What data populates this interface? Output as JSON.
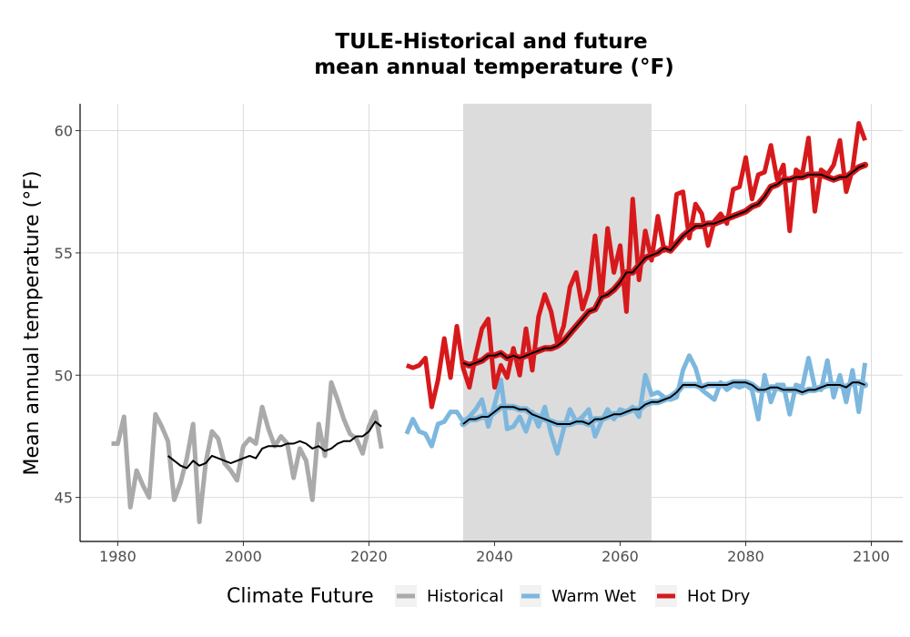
{
  "chart_data": {
    "type": "line",
    "title": "TULE-Historical and future",
    "subtitle": "mean annual temperature (°F)",
    "xlabel": "",
    "ylabel": "Mean annual temperature (°F)",
    "xlim": [
      1974,
      2105
    ],
    "ylim": [
      43.2,
      61.1
    ],
    "xticks": [
      1980,
      2000,
      2020,
      2040,
      2060,
      2080,
      2100
    ],
    "yticks": [
      45,
      50,
      55,
      60
    ],
    "grid": true,
    "shaded_period": [
      2035,
      2065
    ],
    "legend": {
      "title": "Climate Future",
      "position": "bottom",
      "entries": [
        "Historical",
        "Warm Wet",
        "Hot Dry"
      ]
    },
    "colors": {
      "Historical": "#aaaaaa",
      "Warm Wet": "#7db7de",
      "Hot Dry": "#d7191c",
      "smooth": "#000000",
      "shade": "#dcdcdc"
    },
    "series": [
      {
        "name": "Historical",
        "x": [
          1979,
          1980,
          1981,
          1982,
          1983,
          1984,
          1985,
          1986,
          1987,
          1988,
          1989,
          1990,
          1991,
          1992,
          1993,
          1994,
          1995,
          1996,
          1997,
          1998,
          1999,
          2000,
          2001,
          2002,
          2003,
          2004,
          2005,
          2006,
          2007,
          2008,
          2009,
          2010,
          2011,
          2012,
          2013,
          2014,
          2015,
          2016,
          2017,
          2018,
          2019,
          2020,
          2021,
          2022
        ],
        "values": [
          47.2,
          47.2,
          48.3,
          44.6,
          46.1,
          45.5,
          45.0,
          48.4,
          47.9,
          47.3,
          44.9,
          45.6,
          46.6,
          48.0,
          44.0,
          46.4,
          47.7,
          47.4,
          46.4,
          46.1,
          45.7,
          47.1,
          47.4,
          47.2,
          48.7,
          47.8,
          47.1,
          47.5,
          47.2,
          45.8,
          47.0,
          46.5,
          44.9,
          48.0,
          46.7,
          49.7,
          49.0,
          48.2,
          47.6,
          47.4,
          46.8,
          47.9,
          48.5,
          47.0
        ]
      },
      {
        "name": "Historical smoothed",
        "x": [
          1988,
          1989,
          1990,
          1991,
          1992,
          1993,
          1994,
          1995,
          1996,
          1997,
          1998,
          1999,
          2000,
          2001,
          2002,
          2003,
          2004,
          2005,
          2006,
          2007,
          2008,
          2009,
          2010,
          2011,
          2012,
          2013,
          2014,
          2015,
          2016,
          2017,
          2018,
          2019,
          2020,
          2021,
          2022
        ],
        "values": [
          46.7,
          46.5,
          46.3,
          46.2,
          46.5,
          46.3,
          46.4,
          46.7,
          46.6,
          46.5,
          46.4,
          46.5,
          46.6,
          46.7,
          46.6,
          47.0,
          47.1,
          47.1,
          47.1,
          47.2,
          47.2,
          47.3,
          47.2,
          47.0,
          47.1,
          46.9,
          47.0,
          47.2,
          47.3,
          47.3,
          47.5,
          47.5,
          47.7,
          48.1,
          47.9
        ]
      },
      {
        "name": "Warm Wet",
        "x": [
          2026,
          2027,
          2028,
          2029,
          2030,
          2031,
          2032,
          2033,
          2034,
          2035,
          2036,
          2037,
          2038,
          2039,
          2040,
          2041,
          2042,
          2043,
          2044,
          2045,
          2046,
          2047,
          2048,
          2049,
          2050,
          2051,
          2052,
          2053,
          2054,
          2055,
          2056,
          2057,
          2058,
          2059,
          2060,
          2061,
          2062,
          2063,
          2064,
          2065,
          2066,
          2067,
          2068,
          2069,
          2070,
          2071,
          2072,
          2073,
          2074,
          2075,
          2076,
          2077,
          2078,
          2079,
          2080,
          2081,
          2082,
          2083,
          2084,
          2085,
          2086,
          2087,
          2088,
          2089,
          2090,
          2091,
          2092,
          2093,
          2094,
          2095,
          2096,
          2097,
          2098,
          2099
        ],
        "values": [
          47.6,
          48.2,
          47.7,
          47.6,
          47.1,
          48.0,
          48.1,
          48.5,
          48.5,
          48.1,
          48.3,
          48.6,
          49.0,
          47.9,
          48.8,
          49.8,
          47.8,
          47.9,
          48.3,
          47.7,
          48.5,
          47.9,
          48.7,
          47.6,
          46.8,
          47.8,
          48.6,
          48.1,
          48.3,
          48.6,
          47.5,
          48.1,
          48.6,
          48.2,
          48.6,
          48.5,
          48.7,
          48.3,
          50.0,
          49.2,
          49.3,
          49.1,
          49.0,
          49.1,
          50.2,
          50.8,
          50.3,
          49.4,
          49.2,
          49.0,
          49.7,
          49.4,
          49.6,
          49.5,
          49.6,
          49.4,
          48.2,
          50.0,
          48.9,
          49.6,
          49.6,
          48.4,
          49.6,
          49.5,
          50.7,
          49.5,
          49.4,
          50.6,
          49.1,
          50.0,
          48.9,
          50.2,
          48.5,
          50.5
        ]
      },
      {
        "name": "Warm Wet smoothed",
        "x": [
          2035,
          2036,
          2037,
          2038,
          2039,
          2040,
          2041,
          2042,
          2043,
          2044,
          2045,
          2046,
          2047,
          2048,
          2049,
          2050,
          2051,
          2052,
          2053,
          2054,
          2055,
          2056,
          2057,
          2058,
          2059,
          2060,
          2061,
          2062,
          2063,
          2064,
          2065,
          2066,
          2067,
          2068,
          2069,
          2070,
          2071,
          2072,
          2073,
          2074,
          2075,
          2076,
          2077,
          2078,
          2079,
          2080,
          2081,
          2082,
          2083,
          2084,
          2085,
          2086,
          2087,
          2088,
          2089,
          2090,
          2091,
          2092,
          2093,
          2094,
          2095,
          2096,
          2097,
          2098,
          2099
        ],
        "values": [
          48.0,
          48.2,
          48.2,
          48.3,
          48.3,
          48.5,
          48.7,
          48.7,
          48.7,
          48.6,
          48.6,
          48.4,
          48.3,
          48.2,
          48.1,
          48.0,
          48.0,
          48.0,
          48.1,
          48.1,
          48.0,
          48.2,
          48.2,
          48.3,
          48.4,
          48.4,
          48.5,
          48.6,
          48.6,
          48.8,
          48.9,
          48.9,
          49.0,
          49.1,
          49.3,
          49.6,
          49.6,
          49.6,
          49.5,
          49.6,
          49.6,
          49.6,
          49.6,
          49.7,
          49.7,
          49.7,
          49.6,
          49.4,
          49.4,
          49.5,
          49.5,
          49.4,
          49.4,
          49.4,
          49.3,
          49.4,
          49.4,
          49.5,
          49.6,
          49.6,
          49.6,
          49.5,
          49.7,
          49.7,
          49.6
        ]
      },
      {
        "name": "Hot Dry",
        "x": [
          2026,
          2027,
          2028,
          2029,
          2030,
          2031,
          2032,
          2033,
          2034,
          2035,
          2036,
          2037,
          2038,
          2039,
          2040,
          2041,
          2042,
          2043,
          2044,
          2045,
          2046,
          2047,
          2048,
          2049,
          2050,
          2051,
          2052,
          2053,
          2054,
          2055,
          2056,
          2057,
          2058,
          2059,
          2060,
          2061,
          2062,
          2063,
          2064,
          2065,
          2066,
          2067,
          2068,
          2069,
          2070,
          2071,
          2072,
          2073,
          2074,
          2075,
          2076,
          2077,
          2078,
          2079,
          2080,
          2081,
          2082,
          2083,
          2084,
          2085,
          2086,
          2087,
          2088,
          2089,
          2090,
          2091,
          2092,
          2093,
          2094,
          2095,
          2096,
          2097,
          2098,
          2099
        ],
        "values": [
          50.4,
          50.3,
          50.4,
          50.7,
          48.7,
          49.8,
          51.5,
          49.9,
          52.0,
          50.3,
          49.5,
          50.8,
          51.9,
          52.3,
          49.5,
          50.4,
          49.9,
          51.1,
          50.0,
          51.9,
          50.2,
          52.4,
          53.3,
          52.6,
          51.3,
          52.0,
          53.6,
          54.2,
          52.7,
          53.5,
          55.7,
          53.1,
          56.0,
          54.2,
          55.3,
          52.6,
          57.2,
          53.9,
          55.9,
          54.7,
          56.5,
          55.1,
          55.2,
          57.4,
          57.5,
          55.6,
          57.0,
          56.6,
          55.3,
          56.3,
          56.6,
          56.2,
          57.6,
          57.7,
          58.9,
          57.2,
          58.2,
          58.3,
          59.4,
          58.0,
          58.6,
          55.9,
          58.4,
          58.2,
          59.7,
          56.7,
          58.4,
          58.2,
          58.6,
          59.6,
          57.5,
          58.4,
          60.3,
          59.6
        ]
      },
      {
        "name": "Hot Dry smoothed",
        "x": [
          2035,
          2036,
          2037,
          2038,
          2039,
          2040,
          2041,
          2042,
          2043,
          2044,
          2045,
          2046,
          2047,
          2048,
          2049,
          2050,
          2051,
          2052,
          2053,
          2054,
          2055,
          2056,
          2057,
          2058,
          2059,
          2060,
          2061,
          2062,
          2063,
          2064,
          2065,
          2066,
          2067,
          2068,
          2069,
          2070,
          2071,
          2072,
          2073,
          2074,
          2075,
          2076,
          2077,
          2078,
          2079,
          2080,
          2081,
          2082,
          2083,
          2084,
          2085,
          2086,
          2087,
          2088,
          2089,
          2090,
          2091,
          2092,
          2093,
          2094,
          2095,
          2096,
          2097,
          2098,
          2099
        ],
        "values": [
          50.5,
          50.4,
          50.5,
          50.6,
          50.8,
          50.8,
          50.9,
          50.7,
          50.8,
          50.7,
          50.8,
          50.9,
          51.0,
          51.1,
          51.1,
          51.2,
          51.4,
          51.7,
          52.0,
          52.3,
          52.6,
          52.7,
          53.2,
          53.3,
          53.5,
          53.8,
          54.2,
          54.2,
          54.5,
          54.8,
          54.9,
          55.0,
          55.2,
          55.1,
          55.4,
          55.7,
          55.9,
          56.1,
          56.1,
          56.2,
          56.2,
          56.3,
          56.4,
          56.5,
          56.6,
          56.7,
          56.9,
          57.0,
          57.3,
          57.7,
          57.8,
          58.0,
          58.0,
          58.1,
          58.1,
          58.2,
          58.2,
          58.2,
          58.1,
          58.0,
          58.1,
          58.1,
          58.3,
          58.5,
          58.6
        ]
      }
    ]
  }
}
